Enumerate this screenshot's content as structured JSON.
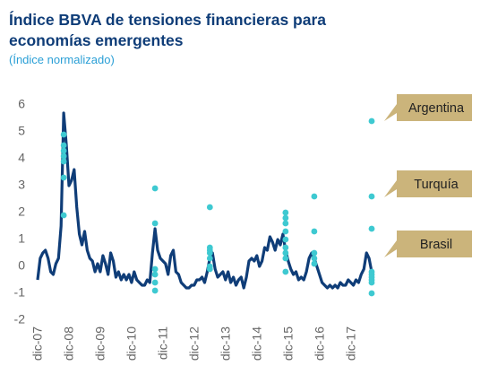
{
  "chart_data": {
    "type": "line",
    "title": "Índice BBVA de tensiones financieras para",
    "title_line2": "economías emergentes",
    "subtitle": "(Índice normalizado)",
    "x": [
      "2007-12",
      "2008-01",
      "2008-02",
      "2008-03",
      "2008-04",
      "2008-05",
      "2008-06",
      "2008-07",
      "2008-08",
      "2008-09",
      "2008-10",
      "2008-11",
      "2008-12",
      "2009-01",
      "2009-02",
      "2009-03",
      "2009-04",
      "2009-05",
      "2009-06",
      "2009-07",
      "2009-08",
      "2009-09",
      "2009-10",
      "2009-11",
      "2009-12",
      "2010-01",
      "2010-02",
      "2010-03",
      "2010-04",
      "2010-05",
      "2010-06",
      "2010-07",
      "2010-08",
      "2010-09",
      "2010-10",
      "2010-11",
      "2010-12",
      "2011-01",
      "2011-02",
      "2011-03",
      "2011-04",
      "2011-05",
      "2011-06",
      "2011-07",
      "2011-08",
      "2011-09",
      "2011-10",
      "2011-11",
      "2011-12",
      "2012-01",
      "2012-02",
      "2012-03",
      "2012-04",
      "2012-05",
      "2012-06",
      "2012-07",
      "2012-08",
      "2012-09",
      "2012-10",
      "2012-11",
      "2012-12",
      "2013-01",
      "2013-02",
      "2013-03",
      "2013-04",
      "2013-05",
      "2013-06",
      "2013-07",
      "2013-08",
      "2013-09",
      "2013-10",
      "2013-11",
      "2013-12",
      "2014-01",
      "2014-02",
      "2014-03",
      "2014-04",
      "2014-05",
      "2014-06",
      "2014-07",
      "2014-08",
      "2014-09",
      "2014-10",
      "2014-11",
      "2014-12",
      "2015-01",
      "2015-02",
      "2015-03",
      "2015-04",
      "2015-05",
      "2015-06",
      "2015-07",
      "2015-08",
      "2015-09",
      "2015-10",
      "2015-11",
      "2015-12",
      "2016-01",
      "2016-02",
      "2016-03",
      "2016-04",
      "2016-05",
      "2016-06",
      "2016-07",
      "2016-08",
      "2016-09",
      "2016-10",
      "2016-11",
      "2016-12",
      "2017-01",
      "2017-02",
      "2017-03",
      "2017-04",
      "2017-05",
      "2017-06",
      "2017-07",
      "2017-08",
      "2017-09",
      "2017-10",
      "2017-11",
      "2017-12",
      "2018-01",
      "2018-02",
      "2018-03",
      "2018-04",
      "2018-05",
      "2018-06",
      "2018-07",
      "2018-08"
    ],
    "series": [
      {
        "color": "#0f3d78",
        "values": [
          -0.5,
          0.3,
          0.5,
          0.6,
          0.3,
          -0.2,
          -0.3,
          0.1,
          0.3,
          1.5,
          5.7,
          4.5,
          3.0,
          3.2,
          3.6,
          2.2,
          1.2,
          0.8,
          1.3,
          0.6,
          0.3,
          0.2,
          -0.2,
          0.1,
          -0.2,
          0.4,
          0.1,
          -0.3,
          0.5,
          0.2,
          -0.4,
          -0.2,
          -0.5,
          -0.3,
          -0.5,
          -0.3,
          -0.6,
          -0.2,
          -0.5,
          -0.6,
          -0.7,
          -0.7,
          -0.5,
          -0.6,
          0.5,
          1.4,
          0.6,
          0.3,
          0.2,
          0.1,
          -0.3,
          0.4,
          0.6,
          -0.2,
          -0.3,
          -0.6,
          -0.7,
          -0.8,
          -0.8,
          -0.7,
          -0.7,
          -0.5,
          -0.5,
          -0.4,
          -0.6,
          -0.2,
          0.3,
          0.5,
          -0.1,
          -0.4,
          -0.3,
          -0.2,
          -0.5,
          -0.2,
          -0.6,
          -0.4,
          -0.7,
          -0.5,
          -0.4,
          -0.8,
          -0.4,
          0.2,
          0.3,
          0.2,
          0.4,
          0.0,
          0.2,
          0.7,
          0.6,
          1.1,
          0.9,
          0.6,
          1.0,
          0.8,
          1.2,
          0.6,
          0.2,
          -0.1,
          -0.3,
          -0.2,
          -0.5,
          -0.4,
          -0.5,
          -0.2,
          0.3,
          0.5,
          0.3,
          0.0,
          -0.3,
          -0.6,
          -0.7,
          -0.8,
          -0.7,
          -0.8,
          -0.7,
          -0.8,
          -0.6,
          -0.7,
          -0.7,
          -0.5,
          -0.6,
          -0.7,
          -0.5,
          -0.6,
          -0.3,
          -0.1,
          0.5,
          0.3,
          -0.2
        ]
      }
    ],
    "points": {
      "color": "#3ec9d1",
      "x": [
        "2008-10",
        "2008-10",
        "2008-10",
        "2008-10",
        "2008-10",
        "2008-10",
        "2008-10",
        "2011-09",
        "2011-09",
        "2011-09",
        "2011-09",
        "2011-09",
        "2011-09",
        "2013-06",
        "2013-06",
        "2013-06",
        "2013-06",
        "2013-06",
        "2013-06",
        "2013-06",
        "2015-11",
        "2015-11",
        "2015-11",
        "2015-11",
        "2015-11",
        "2015-11",
        "2015-11",
        "2015-11",
        "2015-11",
        "2016-10",
        "2016-10",
        "2016-10",
        "2016-10",
        "2016-10",
        "2018-08",
        "2018-08",
        "2018-08",
        "2018-08",
        "2018-08",
        "2018-08",
        "2018-08",
        "2018-08",
        "2018-08"
      ],
      "values": [
        4.9,
        4.5,
        4.3,
        4.1,
        3.9,
        3.3,
        1.9,
        2.9,
        1.6,
        -0.1,
        -0.3,
        -0.6,
        -0.9,
        2.2,
        0.7,
        0.6,
        0.5,
        0.3,
        0.0,
        -0.1,
        2.0,
        1.8,
        1.6,
        1.3,
        1.0,
        0.7,
        0.5,
        0.3,
        -0.2,
        2.6,
        1.3,
        0.5,
        0.3,
        0.1,
        5.4,
        2.6,
        1.4,
        -0.2,
        -0.3,
        -0.4,
        -0.5,
        -0.6,
        -1.0
      ]
    },
    "annotations": [
      {
        "text": "Argentina",
        "y": 5.4
      },
      {
        "text": "Turquía",
        "y": 2.6
      },
      {
        "text": "Brasil",
        "y": 1.4
      }
    ],
    "annotation_color": "#cbb47b",
    "xlim": [
      "2007-12",
      "2018-08"
    ],
    "xticks": [
      {
        "value": "2007-12",
        "label": "dic-07"
      },
      {
        "value": "2008-12",
        "label": "dic-08"
      },
      {
        "value": "2009-12",
        "label": "dic-09"
      },
      {
        "value": "2010-12",
        "label": "dic-10"
      },
      {
        "value": "2011-12",
        "label": "dic-11"
      },
      {
        "value": "2012-12",
        "label": "dic-12"
      },
      {
        "value": "2013-12",
        "label": "dic-13"
      },
      {
        "value": "2014-12",
        "label": "dic-14"
      },
      {
        "value": "2015-12",
        "label": "dic-15"
      },
      {
        "value": "2016-12",
        "label": "dic-16"
      },
      {
        "value": "2017-12",
        "label": "dic-17"
      }
    ],
    "ylim": [
      -2,
      6
    ],
    "yticks": [
      -2,
      -1,
      0,
      1,
      2,
      3,
      4,
      5,
      6
    ],
    "grid": false
  }
}
